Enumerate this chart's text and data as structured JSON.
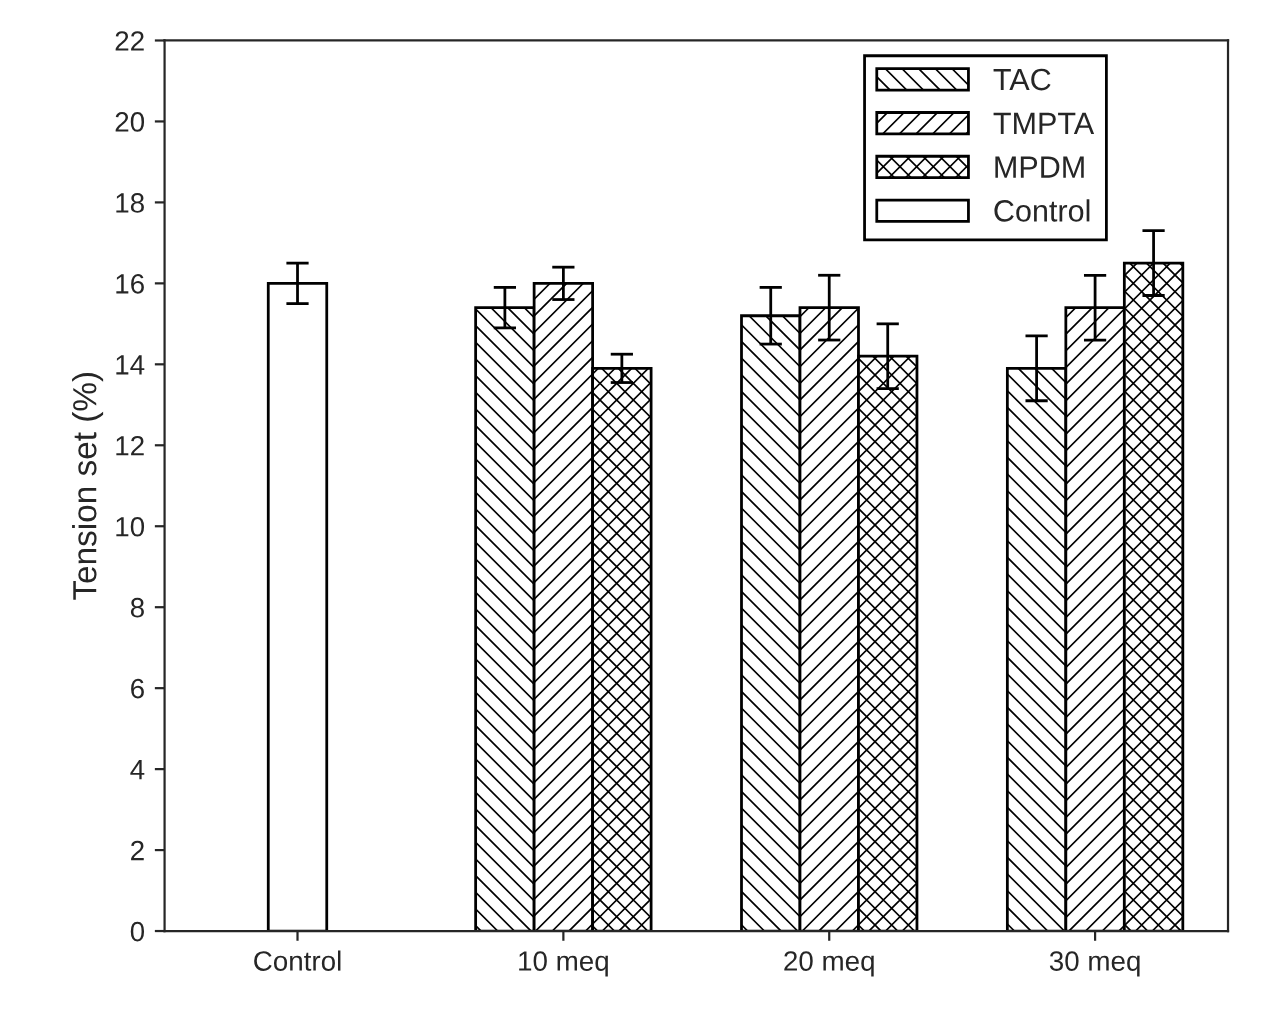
{
  "chart_data": {
    "type": "bar",
    "ylabel": "Tension set (%)",
    "categories": [
      "Control",
      "10 meq",
      "20 meq",
      "30 meq"
    ],
    "series": [
      {
        "name": "TAC",
        "color": "#000000",
        "values": [
          null,
          15.4,
          15.2,
          13.9
        ],
        "errors": [
          null,
          0.5,
          0.7,
          0.8
        ]
      },
      {
        "name": "TMPTA",
        "color": "#000000",
        "values": [
          null,
          16.0,
          15.4,
          15.4
        ],
        "errors": [
          null,
          0.4,
          0.8,
          0.8
        ]
      },
      {
        "name": "MPDM",
        "color": "#000000",
        "values": [
          null,
          13.9,
          14.2,
          16.5
        ],
        "errors": [
          null,
          0.35,
          0.8,
          0.8
        ]
      },
      {
        "name": "Control",
        "color": "#ffffff",
        "values": [
          16.0,
          null,
          null,
          null
        ],
        "errors": [
          0.5,
          null,
          null,
          null
        ]
      }
    ],
    "ylim": [
      0,
      22
    ],
    "yticks": [
      0,
      2,
      4,
      6,
      8,
      10,
      12,
      14,
      16,
      18,
      20,
      22
    ],
    "legend": "top right",
    "grid": false
  }
}
